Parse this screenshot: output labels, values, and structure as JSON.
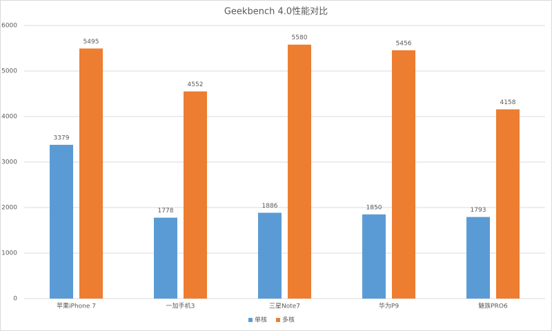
{
  "chart_data": {
    "type": "bar",
    "title": "Geekbench 4.0性能对比",
    "categories": [
      "苹果iPhone 7",
      "一加手机3",
      "三星Note7",
      "华为P9",
      "魅族PRO6"
    ],
    "series": [
      {
        "name": "单核",
        "color": "#5b9bd5",
        "values": [
          3379,
          1778,
          1886,
          1850,
          1793
        ]
      },
      {
        "name": "多核",
        "color": "#ed7d31",
        "values": [
          5495,
          4552,
          5580,
          5456,
          4158
        ]
      }
    ],
    "ylim": [
      0,
      6000
    ],
    "yticks": [
      0,
      1000,
      2000,
      3000,
      4000,
      5000,
      6000
    ],
    "grid": true,
    "legend": "bottom"
  }
}
